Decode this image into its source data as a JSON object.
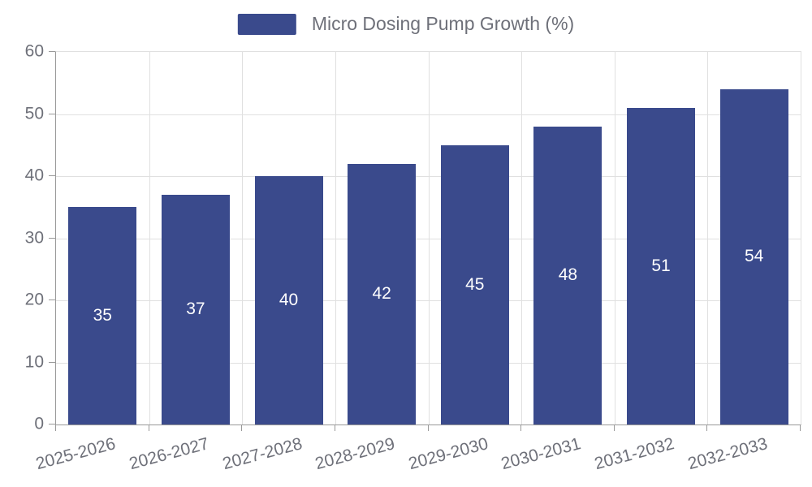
{
  "chart_data": {
    "type": "bar",
    "title": "Micro Dosing Pump Growth (%)",
    "categories": [
      "2025-2026",
      "2026-2027",
      "2027-2028",
      "2028-2029",
      "2029-2030",
      "2030-2031",
      "2031-2032",
      "2032-2033"
    ],
    "values": [
      35,
      37,
      40,
      42,
      45,
      48,
      51,
      54
    ],
    "xlabel": "",
    "ylabel": "",
    "ylim": [
      0,
      60
    ],
    "ytick_step": 10,
    "yticks": [
      0,
      10,
      20,
      30,
      40,
      50,
      60
    ],
    "grid": true,
    "legend_position": "top",
    "legend_entries": [
      "Micro Dosing Pump Growth (%)"
    ],
    "colors": {
      "bar": "#3A4A8C",
      "value_label": "#FFFFFF",
      "axis_text": "#6E7079",
      "axis_line": "#999999",
      "gridline": "#E0E0E0",
      "background": "#FFFFFF"
    }
  }
}
